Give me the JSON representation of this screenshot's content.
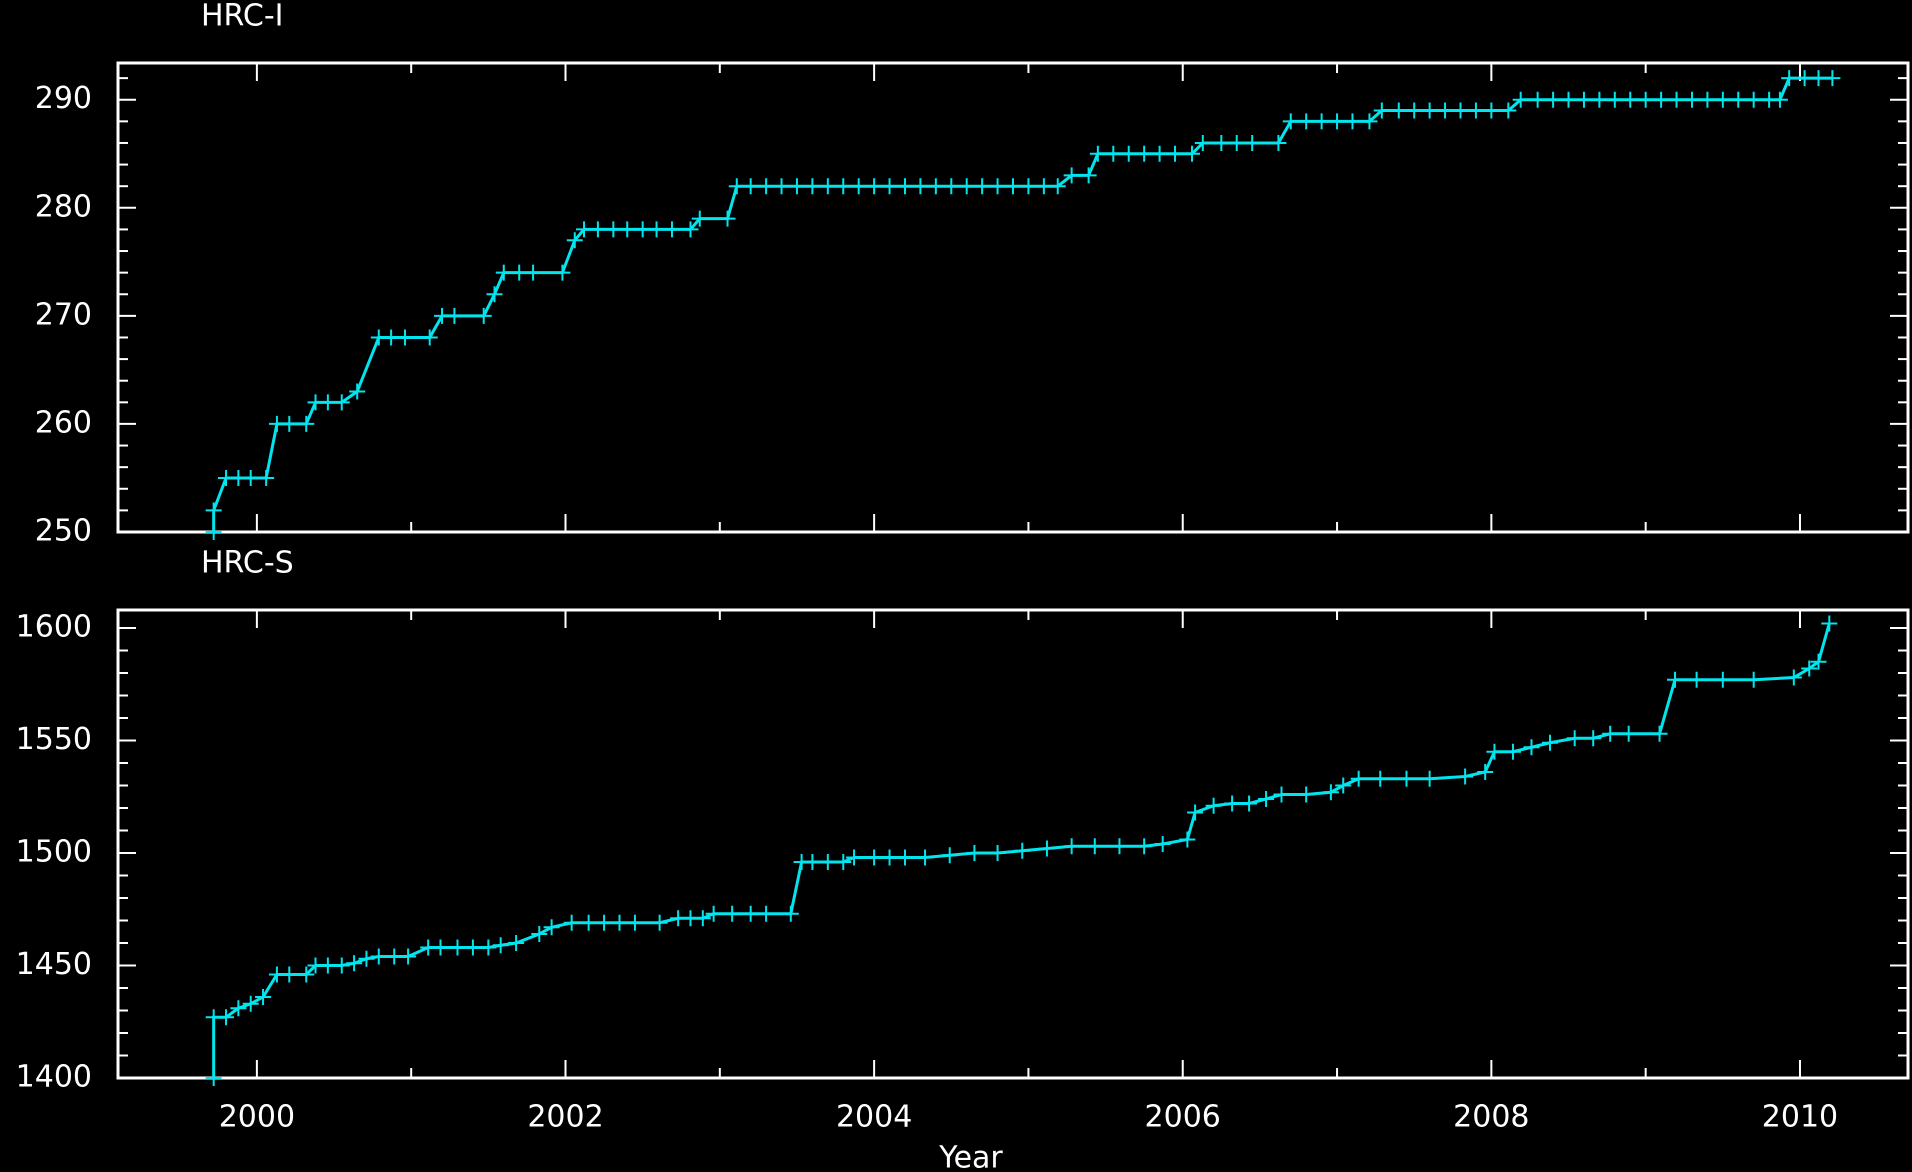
{
  "chart_data": [
    {
      "type": "line",
      "title": "HRC-I",
      "color": "#00e5ee",
      "marker": "+",
      "x": [
        1999.72,
        1999.72,
        1999.8,
        1999.88,
        1999.96,
        2000.06,
        2000.13,
        2000.21,
        2000.32,
        2000.38,
        2000.46,
        2000.55,
        2000.65,
        2000.79,
        2000.87,
        2000.96,
        2001.12,
        2001.2,
        2001.28,
        2001.47,
        2001.54,
        2001.6,
        2001.7,
        2001.79,
        2001.98,
        2002.06,
        2002.12,
        2002.21,
        2002.31,
        2002.4,
        2002.5,
        2002.59,
        2002.69,
        2002.81,
        2002.87,
        2003.05,
        2003.11,
        2003.2,
        2003.3,
        2003.4,
        2003.5,
        2003.6,
        2003.7,
        2003.8,
        2003.9,
        2004.0,
        2004.1,
        2004.2,
        2004.3,
        2004.4,
        2004.5,
        2004.6,
        2004.7,
        2004.8,
        2004.9,
        2005.0,
        2005.1,
        2005.19,
        2005.28,
        2005.39,
        2005.45,
        2005.55,
        2005.65,
        2005.75,
        2005.85,
        2005.95,
        2006.06,
        2006.13,
        2006.25,
        2006.35,
        2006.45,
        2006.62,
        2006.7,
        2006.8,
        2006.9,
        2007.0,
        2007.1,
        2007.21,
        2007.29,
        2007.4,
        2007.5,
        2007.6,
        2007.7,
        2007.8,
        2007.9,
        2008.0,
        2008.11,
        2008.19,
        2008.3,
        2008.4,
        2008.5,
        2008.6,
        2008.7,
        2008.8,
        2008.9,
        2009.0,
        2009.1,
        2009.2,
        2009.3,
        2009.4,
        2009.5,
        2009.6,
        2009.7,
        2009.8,
        2009.87,
        2009.93,
        2010.03,
        2010.12,
        2010.21
      ],
      "values": [
        250,
        252,
        255,
        255,
        255,
        255,
        260,
        260,
        260,
        262,
        262,
        262,
        263,
        268,
        268,
        268,
        268,
        270,
        270,
        270,
        272,
        274,
        274,
        274,
        274,
        277,
        278,
        278,
        278,
        278,
        278,
        278,
        278,
        278,
        279,
        279,
        282,
        282,
        282,
        282,
        282,
        282,
        282,
        282,
        282,
        282,
        282,
        282,
        282,
        282,
        282,
        282,
        282,
        282,
        282,
        282,
        282,
        282,
        283,
        283,
        285,
        285,
        285,
        285,
        285,
        285,
        285,
        286,
        286,
        286,
        286,
        286,
        288,
        288,
        288,
        288,
        288,
        288,
        289,
        289,
        289,
        289,
        289,
        289,
        289,
        289,
        289,
        290,
        290,
        290,
        290,
        290,
        290,
        290,
        290,
        290,
        290,
        290,
        290,
        290,
        290,
        290,
        290,
        290,
        290,
        292,
        292,
        292,
        292
      ],
      "xlim": [
        1999.1,
        2010.7
      ],
      "xticks": [
        2000,
        2002,
        2004,
        2006,
        2008,
        2010
      ],
      "xminor": [
        2001,
        2003,
        2005,
        2007,
        2009
      ],
      "xtick_labels": false,
      "ylim": [
        250,
        293.4
      ],
      "yticks": [
        250,
        260,
        270,
        280,
        290
      ],
      "yminor": [
        252,
        254,
        256,
        258,
        262,
        264,
        266,
        268,
        272,
        274,
        276,
        278,
        282,
        284,
        286,
        288,
        292
      ]
    },
    {
      "type": "line",
      "title": "HRC-S",
      "xlabel": "Year",
      "color": "#00e5ee",
      "marker": "+",
      "x": [
        1999.72,
        1999.72,
        1999.8,
        1999.88,
        1999.96,
        2000.04,
        2000.13,
        2000.21,
        2000.32,
        2000.38,
        2000.46,
        2000.55,
        2000.63,
        2000.71,
        2000.79,
        2000.89,
        2000.98,
        2001.11,
        2001.19,
        2001.3,
        2001.4,
        2001.5,
        2001.58,
        2001.68,
        2001.83,
        2001.91,
        2002.04,
        2002.15,
        2002.25,
        2002.35,
        2002.45,
        2002.61,
        2002.73,
        2002.81,
        2002.89,
        2002.96,
        2003.08,
        2003.2,
        2003.3,
        2003.46,
        2003.53,
        2003.6,
        2003.7,
        2003.8,
        2003.87,
        2004.0,
        2004.1,
        2004.2,
        2004.33,
        2004.49,
        2004.65,
        2004.8,
        2004.96,
        2005.12,
        2005.28,
        2005.43,
        2005.59,
        2005.75,
        2005.87,
        2006.03,
        2006.08,
        2006.2,
        2006.32,
        2006.43,
        2006.54,
        2006.64,
        2006.8,
        2006.96,
        2007.04,
        2007.14,
        2007.28,
        2007.45,
        2007.6,
        2007.83,
        2007.96,
        2008.02,
        2008.14,
        2008.26,
        2008.38,
        2008.54,
        2008.66,
        2008.77,
        2008.89,
        2009.09,
        2009.19,
        2009.33,
        2009.5,
        2009.7,
        2009.96,
        2010.06,
        2010.12,
        2010.19
      ],
      "values": [
        1400,
        1427,
        1427,
        1431,
        1433,
        1436,
        1446,
        1446,
        1446,
        1450,
        1450,
        1450,
        1451,
        1453,
        1454,
        1454,
        1454,
        1458,
        1458,
        1458,
        1458,
        1458,
        1459,
        1460,
        1464,
        1467,
        1469,
        1469,
        1469,
        1469,
        1469,
        1469,
        1471,
        1471,
        1471,
        1473,
        1473,
        1473,
        1473,
        1473,
        1496,
        1496,
        1496,
        1496,
        1498,
        1498,
        1498,
        1498,
        1498,
        1499,
        1500,
        1500,
        1501,
        1502,
        1503,
        1503,
        1503,
        1503,
        1504,
        1506,
        1518,
        1521,
        1522,
        1522,
        1524,
        1526,
        1526,
        1527,
        1530,
        1533,
        1533,
        1533,
        1533,
        1534,
        1536,
        1545,
        1545,
        1547,
        1549,
        1551,
        1551,
        1553,
        1553,
        1553,
        1577,
        1577,
        1577,
        1577,
        1578,
        1582,
        1585,
        1602
      ],
      "xlim": [
        1999.1,
        2010.7
      ],
      "xticks": [
        2000,
        2002,
        2004,
        2006,
        2008,
        2010
      ],
      "xminor": [
        2001,
        2003,
        2005,
        2007,
        2009
      ],
      "xtick_labels": true,
      "ylim": [
        1400,
        1608
      ],
      "yticks": [
        1400,
        1450,
        1500,
        1550,
        1600
      ],
      "yminor": [
        1410,
        1420,
        1430,
        1440,
        1460,
        1470,
        1480,
        1490,
        1510,
        1520,
        1530,
        1540,
        1560,
        1570,
        1580,
        1590
      ]
    }
  ]
}
